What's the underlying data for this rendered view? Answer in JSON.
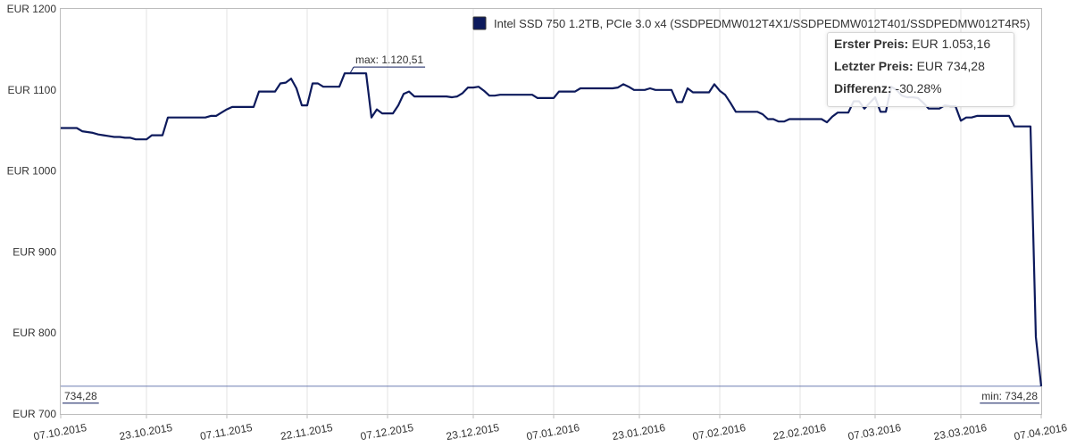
{
  "chart_data": {
    "type": "line",
    "series": [
      {
        "name": "Intel SSD 750 1.2TB, PCIe 3.0 x4 (SSDPEDMW012T4X1/SSDPEDMW012T401/SSDPEDMW012T4R5)",
        "color": "#0d1a5c",
        "points": [
          [
            "07.10.2015",
            1053
          ],
          [
            "08.10.2015",
            1053
          ],
          [
            "09.10.2015",
            1053
          ],
          [
            "10.10.2015",
            1053
          ],
          [
            "11.10.2015",
            1049
          ],
          [
            "12.10.2015",
            1048
          ],
          [
            "13.10.2015",
            1047
          ],
          [
            "14.10.2015",
            1045
          ],
          [
            "15.10.2015",
            1044
          ],
          [
            "16.10.2015",
            1043
          ],
          [
            "17.10.2015",
            1042
          ],
          [
            "18.10.2015",
            1042
          ],
          [
            "19.10.2015",
            1041
          ],
          [
            "20.10.2015",
            1041
          ],
          [
            "21.10.2015",
            1039
          ],
          [
            "22.10.2015",
            1039
          ],
          [
            "23.10.2015",
            1039
          ],
          [
            "24.10.2015",
            1044
          ],
          [
            "25.10.2015",
            1044
          ],
          [
            "26.10.2015",
            1044
          ],
          [
            "27.10.2015",
            1066
          ],
          [
            "28.10.2015",
            1066
          ],
          [
            "29.10.2015",
            1066
          ],
          [
            "30.10.2015",
            1066
          ],
          [
            "31.10.2015",
            1066
          ],
          [
            "01.11.2015",
            1066
          ],
          [
            "02.11.2015",
            1066
          ],
          [
            "03.11.2015",
            1066
          ],
          [
            "04.11.2015",
            1068
          ],
          [
            "05.11.2015",
            1068
          ],
          [
            "06.11.2015",
            1072
          ],
          [
            "07.11.2015",
            1076
          ],
          [
            "08.11.2015",
            1079
          ],
          [
            "09.11.2015",
            1079
          ],
          [
            "10.11.2015",
            1079
          ],
          [
            "11.11.2015",
            1079
          ],
          [
            "12.11.2015",
            1079
          ],
          [
            "13.11.2015",
            1098
          ],
          [
            "14.11.2015",
            1098
          ],
          [
            "15.11.2015",
            1098
          ],
          [
            "16.11.2015",
            1098
          ],
          [
            "17.11.2015",
            1108
          ],
          [
            "18.11.2015",
            1109
          ],
          [
            "19.11.2015",
            1114
          ],
          [
            "20.11.2015",
            1102
          ],
          [
            "21.11.2015",
            1081
          ],
          [
            "22.11.2015",
            1081
          ],
          [
            "23.11.2015",
            1108
          ],
          [
            "24.11.2015",
            1108
          ],
          [
            "25.11.2015",
            1104
          ],
          [
            "26.11.2015",
            1104
          ],
          [
            "27.11.2015",
            1104
          ],
          [
            "28.11.2015",
            1104
          ],
          [
            "29.11.2015",
            1120.51
          ],
          [
            "30.11.2015",
            1120.51
          ],
          [
            "01.12.2015",
            1120.51
          ],
          [
            "02.12.2015",
            1120.51
          ],
          [
            "03.12.2015",
            1120.51
          ],
          [
            "04.12.2015",
            1066
          ],
          [
            "05.12.2015",
            1076
          ],
          [
            "06.12.2015",
            1071
          ],
          [
            "07.12.2015",
            1071
          ],
          [
            "08.12.2015",
            1071
          ],
          [
            "09.12.2015",
            1081
          ],
          [
            "10.12.2015",
            1095
          ],
          [
            "11.12.2015",
            1098
          ],
          [
            "12.12.2015",
            1092
          ],
          [
            "13.12.2015",
            1092
          ],
          [
            "14.12.2015",
            1092
          ],
          [
            "15.12.2015",
            1092
          ],
          [
            "16.12.2015",
            1092
          ],
          [
            "17.12.2015",
            1092
          ],
          [
            "18.12.2015",
            1092
          ],
          [
            "19.12.2015",
            1091
          ],
          [
            "20.12.2015",
            1092
          ],
          [
            "21.12.2015",
            1096
          ],
          [
            "22.12.2015",
            1103
          ],
          [
            "23.12.2015",
            1103
          ],
          [
            "24.12.2015",
            1104
          ],
          [
            "25.12.2015",
            1099
          ],
          [
            "26.12.2015",
            1093
          ],
          [
            "27.12.2015",
            1093
          ],
          [
            "28.12.2015",
            1094
          ],
          [
            "29.12.2015",
            1094
          ],
          [
            "30.12.2015",
            1094
          ],
          [
            "31.12.2015",
            1094
          ],
          [
            "01.01.2016",
            1094
          ],
          [
            "02.01.2016",
            1094
          ],
          [
            "03.01.2016",
            1094
          ],
          [
            "04.01.2016",
            1090
          ],
          [
            "05.01.2016",
            1090
          ],
          [
            "06.01.2016",
            1090
          ],
          [
            "07.01.2016",
            1090
          ],
          [
            "08.01.2016",
            1098
          ],
          [
            "09.01.2016",
            1098
          ],
          [
            "10.01.2016",
            1098
          ],
          [
            "11.01.2016",
            1098
          ],
          [
            "12.01.2016",
            1102
          ],
          [
            "13.01.2016",
            1102
          ],
          [
            "14.01.2016",
            1102
          ],
          [
            "15.01.2016",
            1102
          ],
          [
            "16.01.2016",
            1102
          ],
          [
            "17.01.2016",
            1102
          ],
          [
            "18.01.2016",
            1102
          ],
          [
            "19.01.2016",
            1103
          ],
          [
            "20.01.2016",
            1107
          ],
          [
            "21.01.2016",
            1104
          ],
          [
            "22.01.2016",
            1100
          ],
          [
            "23.01.2016",
            1100
          ],
          [
            "24.01.2016",
            1100
          ],
          [
            "25.01.2016",
            1102
          ],
          [
            "26.01.2016",
            1100
          ],
          [
            "27.01.2016",
            1100
          ],
          [
            "28.01.2016",
            1100
          ],
          [
            "29.01.2016",
            1100
          ],
          [
            "30.01.2016",
            1085
          ],
          [
            "31.01.2016",
            1085
          ],
          [
            "01.02.2016",
            1102
          ],
          [
            "02.02.2016",
            1097
          ],
          [
            "03.02.2016",
            1097
          ],
          [
            "04.02.2016",
            1097
          ],
          [
            "05.02.2016",
            1097
          ],
          [
            "06.02.2016",
            1107
          ],
          [
            "07.02.2016",
            1099
          ],
          [
            "08.02.2016",
            1094
          ],
          [
            "09.02.2016",
            1084
          ],
          [
            "10.02.2016",
            1073
          ],
          [
            "11.02.2016",
            1073
          ],
          [
            "12.02.2016",
            1073
          ],
          [
            "13.02.2016",
            1073
          ],
          [
            "14.02.2016",
            1073
          ],
          [
            "15.02.2016",
            1070
          ],
          [
            "16.02.2016",
            1064
          ],
          [
            "17.02.2016",
            1064
          ],
          [
            "18.02.2016",
            1061
          ],
          [
            "19.02.2016",
            1061
          ],
          [
            "20.02.2016",
            1064
          ],
          [
            "21.02.2016",
            1064
          ],
          [
            "22.02.2016",
            1064
          ],
          [
            "23.02.2016",
            1064
          ],
          [
            "24.02.2016",
            1064
          ],
          [
            "25.02.2016",
            1064
          ],
          [
            "26.02.2016",
            1064
          ],
          [
            "27.02.2016",
            1060
          ],
          [
            "28.02.2016",
            1067
          ],
          [
            "29.02.2016",
            1072
          ],
          [
            "01.03.2016",
            1072
          ],
          [
            "02.03.2016",
            1072
          ],
          [
            "03.03.2016",
            1086
          ],
          [
            "04.03.2016",
            1086
          ],
          [
            "05.03.2016",
            1077
          ],
          [
            "06.03.2016",
            1084
          ],
          [
            "07.03.2016",
            1091
          ],
          [
            "08.03.2016",
            1073
          ],
          [
            "09.03.2016",
            1073
          ],
          [
            "10.03.2016",
            1104
          ],
          [
            "11.03.2016",
            1100
          ],
          [
            "12.03.2016",
            1093
          ],
          [
            "13.03.2016",
            1091
          ],
          [
            "14.03.2016",
            1091
          ],
          [
            "15.03.2016",
            1090
          ],
          [
            "16.03.2016",
            1084
          ],
          [
            "17.03.2016",
            1077
          ],
          [
            "18.03.2016",
            1077
          ],
          [
            "19.03.2016",
            1077
          ],
          [
            "20.03.2016",
            1081
          ],
          [
            "21.03.2016",
            1080
          ],
          [
            "22.03.2016",
            1080
          ],
          [
            "23.03.2016",
            1062
          ],
          [
            "24.03.2016",
            1066
          ],
          [
            "25.03.2016",
            1066
          ],
          [
            "26.03.2016",
            1068
          ],
          [
            "27.03.2016",
            1068
          ],
          [
            "28.03.2016",
            1068
          ],
          [
            "29.03.2016",
            1068
          ],
          [
            "30.03.2016",
            1068
          ],
          [
            "31.03.2016",
            1068
          ],
          [
            "01.04.2016",
            1068
          ],
          [
            "02.04.2016",
            1055
          ],
          [
            "03.04.2016",
            1055
          ],
          [
            "04.04.2016",
            1055
          ],
          [
            "05.04.2016",
            1055
          ],
          [
            "06.04.2016",
            795
          ],
          [
            "07.04.2016",
            734.28
          ]
        ]
      }
    ],
    "y_ticks": [
      "EUR 1200",
      "EUR 1100",
      "EUR 1000",
      "EUR 900",
      "EUR 800",
      "EUR 700"
    ],
    "y_tick_values": [
      1200,
      1100,
      1000,
      900,
      800,
      700
    ],
    "ylim": [
      700,
      1200
    ],
    "x_ticks": [
      "07.10.2015",
      "23.10.2015",
      "07.11.2015",
      "22.11.2015",
      "07.12.2015",
      "23.12.2015",
      "07.01.2016",
      "23.01.2016",
      "07.02.2016",
      "22.02.2016",
      "07.03.2016",
      "23.03.2016",
      "07.04.2016"
    ],
    "xlim": [
      "07.10.2015",
      "07.04.2016"
    ],
    "reference_line": 734.28,
    "annotations": {
      "max_label": "max: 1.120,51",
      "max_at": "30.11.2015",
      "max_value": 1120.51,
      "min_label": "min: 734,28",
      "last_value_label": "734,28"
    },
    "legend_position": "top-right",
    "grid": "vertical"
  },
  "info": {
    "first_label": "Erster Preis:",
    "first_value": "EUR 1.053,16",
    "last_label": "Letzter Preis:",
    "last_value": "EUR 734,28",
    "diff_label": "Differenz:",
    "diff_value": "-30.28%"
  }
}
